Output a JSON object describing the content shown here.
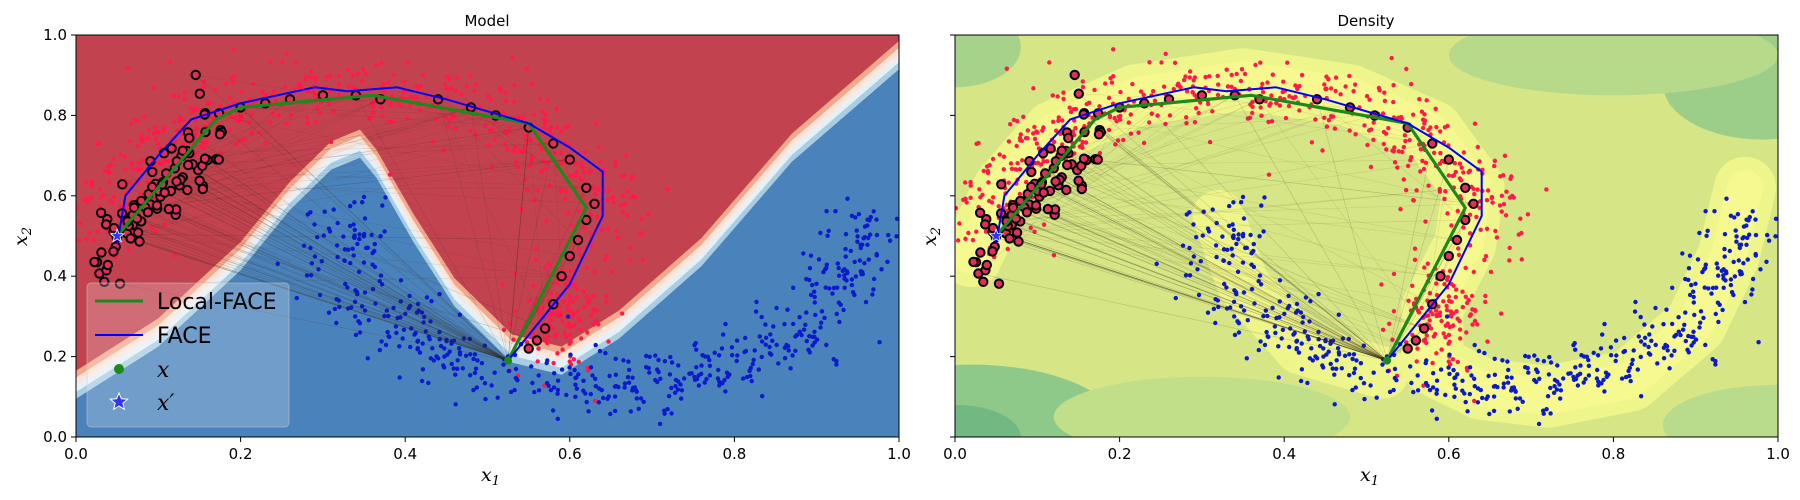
{
  "chart_data": [
    {
      "type": "scatter",
      "title": "Model",
      "xlabel": "x1",
      "ylabel": "x2",
      "xlim": [
        0.0,
        1.0
      ],
      "ylim": [
        0.0,
        1.0
      ],
      "xticks": [
        "0.0",
        "0.2",
        "0.4",
        "0.6",
        "0.8",
        "1.0"
      ],
      "yticks": [
        "0.0",
        "0.2",
        "0.4",
        "0.6",
        "0.8",
        "1.0"
      ],
      "background": "classifier decision regions (red = class 1, blue = class 0)",
      "legend": {
        "placement": "lower-left",
        "entries": [
          {
            "label": "Local-FACE",
            "color": "#1a8a1a",
            "marker": "line"
          },
          {
            "label": "FACE",
            "color": "#0000ff",
            "marker": "line"
          },
          {
            "label": "x",
            "color": "#1a8a1a",
            "marker": "dot"
          },
          {
            "label": "x′",
            "color": "#3333ff",
            "marker": "star"
          }
        ]
      },
      "series": [
        {
          "name": "Local-FACE",
          "color": "#1a8a1a",
          "points": [
            [
              0.525,
              0.19
            ],
            [
              0.62,
              0.57
            ],
            [
              0.55,
              0.78
            ],
            [
              0.36,
              0.85
            ],
            [
              0.2,
              0.82
            ],
            [
              0.17,
              0.79
            ],
            [
              0.05,
              0.5
            ]
          ]
        },
        {
          "name": "FACE",
          "color": "#0000ff",
          "points": [
            [
              0.525,
              0.19
            ],
            [
              0.6,
              0.38
            ],
            [
              0.64,
              0.55
            ],
            [
              0.64,
              0.66
            ],
            [
              0.6,
              0.72
            ],
            [
              0.55,
              0.78
            ],
            [
              0.45,
              0.84
            ],
            [
              0.39,
              0.87
            ],
            [
              0.33,
              0.86
            ],
            [
              0.29,
              0.87
            ],
            [
              0.2,
              0.83
            ],
            [
              0.14,
              0.79
            ],
            [
              0.1,
              0.7
            ],
            [
              0.06,
              0.6
            ],
            [
              0.05,
              0.48
            ]
          ]
        }
      ]
    },
    {
      "type": "scatter",
      "title": "Density",
      "xlabel": "x1",
      "ylabel": "x2",
      "xlim": [
        0.0,
        1.0
      ],
      "ylim": [
        0.0,
        1.0
      ],
      "xticks": [
        "0.0",
        "0.2",
        "0.4",
        "0.6",
        "0.8",
        "1.0"
      ],
      "background": "density contours (yellow = high, green = low)",
      "series": [
        {
          "name": "Local-FACE",
          "color": "#1a8a1a",
          "points": [
            [
              0.525,
              0.19
            ],
            [
              0.62,
              0.57
            ],
            [
              0.55,
              0.78
            ],
            [
              0.36,
              0.85
            ],
            [
              0.2,
              0.82
            ],
            [
              0.17,
              0.79
            ],
            [
              0.05,
              0.5
            ]
          ]
        },
        {
          "name": "FACE",
          "color": "#0000ff",
          "points": [
            [
              0.525,
              0.19
            ],
            [
              0.6,
              0.38
            ],
            [
              0.64,
              0.55
            ],
            [
              0.64,
              0.66
            ],
            [
              0.6,
              0.72
            ],
            [
              0.55,
              0.78
            ],
            [
              0.45,
              0.84
            ],
            [
              0.39,
              0.87
            ],
            [
              0.33,
              0.86
            ],
            [
              0.29,
              0.87
            ],
            [
              0.2,
              0.83
            ],
            [
              0.14,
              0.79
            ],
            [
              0.1,
              0.7
            ],
            [
              0.06,
              0.6
            ],
            [
              0.05,
              0.48
            ]
          ]
        }
      ]
    }
  ]
}
